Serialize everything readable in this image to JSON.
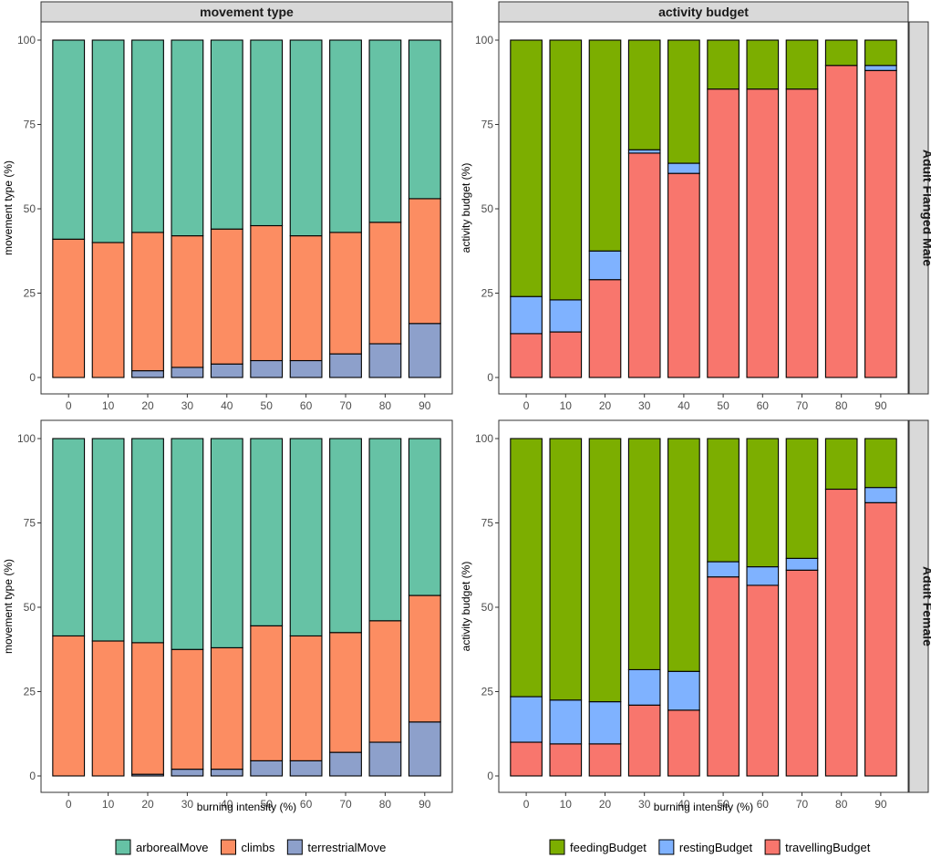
{
  "chart_data": {
    "type": "bar",
    "stacked": true,
    "x_label": "burning intensity (%)",
    "categories": [
      "0",
      "10",
      "20",
      "30",
      "40",
      "50",
      "60",
      "70",
      "80",
      "90"
    ],
    "y_ticks": [
      "0",
      "25",
      "50",
      "75",
      "100"
    ],
    "ylim": [
      0,
      100
    ],
    "column_strips": [
      "movement type",
      "activity budget"
    ],
    "row_strips": [
      "Adult Flanged Male",
      "Adult Female"
    ],
    "legends": [
      {
        "items": [
          {
            "label": "arborealMove",
            "color": "#66C2A5"
          },
          {
            "label": "climbs",
            "color": "#FC8D62"
          },
          {
            "label": "terrestrialMove",
            "color": "#8DA0CB"
          }
        ]
      },
      {
        "items": [
          {
            "label": "feedingBudget",
            "color": "#7CAE00"
          },
          {
            "label": "restingBudget",
            "color": "#7FB2FF"
          },
          {
            "label": "travellingBudget",
            "color": "#F8766D"
          }
        ]
      }
    ],
    "panels": [
      {
        "id": "movement-male",
        "ylabel": "movement type (%)",
        "series": [
          {
            "name": "terrestrialMove",
            "color": "#8DA0CB",
            "values": [
              0,
              0,
              2,
              3,
              4,
              5,
              5,
              7,
              10,
              16
            ]
          },
          {
            "name": "climbs",
            "color": "#FC8D62",
            "values": [
              41,
              40,
              41,
              39,
              40,
              40,
              37,
              36,
              36,
              37
            ]
          },
          {
            "name": "arborealMove",
            "color": "#66C2A5",
            "values": [
              59,
              60,
              57,
              58,
              56,
              55,
              58,
              57,
              54,
              47
            ]
          }
        ]
      },
      {
        "id": "activity-male",
        "ylabel": "activity budget (%)",
        "series": [
          {
            "name": "travellingBudget",
            "color": "#F8766D",
            "values": [
              13,
              13.5,
              29,
              66.5,
              60.5,
              85.5,
              85.5,
              85.5,
              92.5,
              91
            ]
          },
          {
            "name": "restingBudget",
            "color": "#7FB2FF",
            "values": [
              11,
              9.5,
              8.5,
              1,
              3,
              0,
              0,
              0,
              0,
              1.5
            ]
          },
          {
            "name": "feedingBudget",
            "color": "#7CAE00",
            "values": [
              76,
              77,
              62.5,
              32.5,
              36.5,
              14.5,
              14.5,
              14.5,
              7.5,
              7.5
            ]
          }
        ]
      },
      {
        "id": "movement-female",
        "ylabel": "movement type (%)",
        "series": [
          {
            "name": "terrestrialMove",
            "color": "#8DA0CB",
            "values": [
              0,
              0,
              0.5,
              2,
              2,
              4.5,
              4.5,
              7,
              10,
              16
            ]
          },
          {
            "name": "climbs",
            "color": "#FC8D62",
            "values": [
              41.5,
              40,
              39,
              35.5,
              36,
              40,
              37,
              35.5,
              36,
              37.5
            ]
          },
          {
            "name": "arborealMove",
            "color": "#66C2A5",
            "values": [
              58.5,
              60,
              60.5,
              62.5,
              62,
              55.5,
              58.5,
              57.5,
              54,
              46.5
            ]
          }
        ]
      },
      {
        "id": "activity-female",
        "ylabel": "activity budget (%)",
        "series": [
          {
            "name": "travellingBudget",
            "color": "#F8766D",
            "values": [
              10,
              9.5,
              9.5,
              21,
              19.5,
              59,
              56.5,
              61,
              85,
              81
            ]
          },
          {
            "name": "restingBudget",
            "color": "#7FB2FF",
            "values": [
              13.5,
              13,
              12.5,
              10.5,
              11.5,
              4.5,
              5.5,
              3.5,
              0,
              4.5
            ]
          },
          {
            "name": "feedingBudget",
            "color": "#7CAE00",
            "values": [
              76.5,
              77.5,
              78,
              68.5,
              69,
              36.5,
              38,
              35.5,
              15,
              14.5
            ]
          }
        ]
      }
    ]
  }
}
